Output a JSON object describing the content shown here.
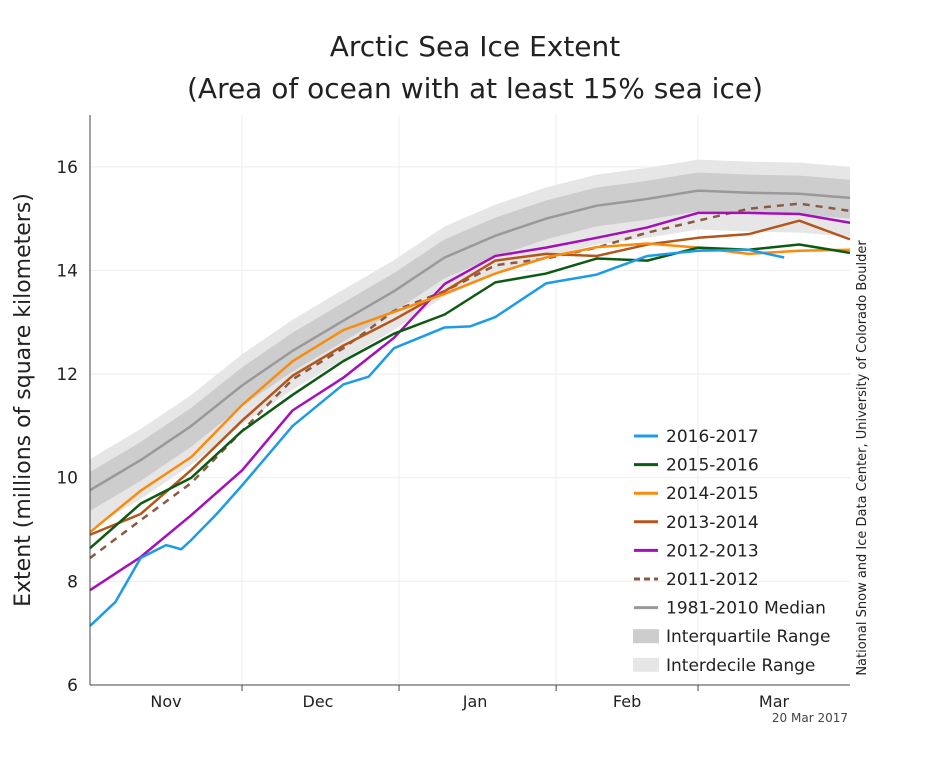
{
  "chart_data": {
    "type": "line",
    "title": "Arctic Sea Ice Extent",
    "subtitle": "(Area of ocean with at least 15% sea ice)",
    "ylabel": "Extent (millions of square kilometers)",
    "xlabel": "",
    "ylim": [
      6,
      17
    ],
    "yticks": [
      6,
      8,
      10,
      12,
      14,
      16
    ],
    "x_unit": "days since 1 Nov",
    "xlim": [
      0,
      150
    ],
    "month_boundaries": [
      30,
      61,
      92,
      120
    ],
    "xtick_labels": [
      {
        "label": "Nov",
        "day": 15
      },
      {
        "label": "Dec",
        "day": 45
      },
      {
        "label": "Jan",
        "day": 76
      },
      {
        "label": "Feb",
        "day": 106
      },
      {
        "label": "Mar",
        "day": 135
      }
    ],
    "grid": true,
    "legend_position": "bottom-right",
    "date_stamp": "20 Mar 2017",
    "source": "National Snow and Ice Data Center, University of Colorado Boulder",
    "x": [
      0,
      10,
      20,
      30,
      40,
      50,
      60,
      70,
      80,
      90,
      100,
      110,
      120,
      130,
      140,
      150
    ],
    "bands": [
      {
        "name": "Interdecile Range",
        "color": "#e6e6e6",
        "lower": [
          9.01,
          9.59,
          10.25,
          11.03,
          11.7,
          12.28,
          12.85,
          13.5,
          13.92,
          14.25,
          14.5,
          14.63,
          14.79,
          14.75,
          14.73,
          14.65
        ],
        "upper": [
          10.36,
          10.94,
          11.6,
          12.38,
          13.05,
          13.63,
          14.2,
          14.85,
          15.27,
          15.6,
          15.85,
          15.98,
          16.14,
          16.1,
          16.08,
          16.0
        ]
      },
      {
        "name": "Interquartile Range",
        "color": "#cdcdcd",
        "lower": [
          9.36,
          9.94,
          10.6,
          11.38,
          12.05,
          12.63,
          13.2,
          13.85,
          14.27,
          14.6,
          14.85,
          14.98,
          15.14,
          15.1,
          15.08,
          15.0
        ],
        "upper": [
          10.11,
          10.69,
          11.35,
          12.13,
          12.8,
          13.38,
          13.95,
          14.6,
          15.02,
          15.35,
          15.6,
          15.73,
          15.89,
          15.85,
          15.83,
          15.75
        ]
      }
    ],
    "series": [
      {
        "name": "2016-2017",
        "color": "#1e9be8",
        "dashed": false,
        "x": [
          0,
          5,
          10,
          15,
          18,
          20,
          25,
          30,
          40,
          50,
          55,
          60,
          70,
          75,
          80,
          90,
          100,
          110,
          120,
          130,
          137
        ],
        "values": [
          7.14,
          7.6,
          8.45,
          8.7,
          8.62,
          8.8,
          9.3,
          9.85,
          11.0,
          11.8,
          11.95,
          12.5,
          12.9,
          12.92,
          13.1,
          13.75,
          13.92,
          14.28,
          14.38,
          14.4,
          14.25
        ]
      },
      {
        "name": "2015-2016",
        "color": "#0d5a12",
        "dashed": false,
        "values": [
          8.64,
          9.5,
          10.0,
          10.9,
          11.6,
          12.25,
          12.78,
          13.15,
          13.77,
          13.94,
          14.23,
          14.19,
          14.44,
          14.4,
          14.5,
          14.34
        ]
      },
      {
        "name": "2014-2015",
        "color": "#f98b0e",
        "dashed": false,
        "values": [
          8.95,
          9.75,
          10.4,
          11.4,
          12.25,
          12.85,
          13.2,
          13.55,
          13.94,
          14.25,
          14.45,
          14.52,
          14.44,
          14.32,
          14.38,
          14.4
        ]
      },
      {
        "name": "2013-2014",
        "color": "#b4561b",
        "dashed": false,
        "values": [
          8.9,
          9.3,
          10.15,
          11.1,
          11.97,
          12.55,
          13.05,
          13.6,
          14.19,
          14.32,
          14.28,
          14.5,
          14.63,
          14.7,
          14.96,
          14.6
        ]
      },
      {
        "name": "2012-2013",
        "color": "#a310b8",
        "dashed": false,
        "values": [
          7.83,
          8.47,
          9.28,
          10.14,
          11.3,
          11.93,
          12.7,
          13.74,
          14.28,
          14.44,
          14.63,
          14.83,
          15.11,
          15.11,
          15.09,
          14.92
        ]
      },
      {
        "name": "2011-2012",
        "color": "#8a5a44",
        "dashed": true,
        "values": [
          8.45,
          9.18,
          9.9,
          10.9,
          11.9,
          12.5,
          13.22,
          13.6,
          14.1,
          14.23,
          14.44,
          14.73,
          14.96,
          15.19,
          15.29,
          15.15
        ]
      },
      {
        "name": "1981-2010 Median",
        "color": "#999999",
        "dashed": false,
        "values": [
          9.76,
          10.34,
          11.0,
          11.78,
          12.45,
          13.03,
          13.6,
          14.25,
          14.67,
          15.0,
          15.25,
          15.38,
          15.54,
          15.5,
          15.48,
          15.4
        ]
      }
    ]
  }
}
